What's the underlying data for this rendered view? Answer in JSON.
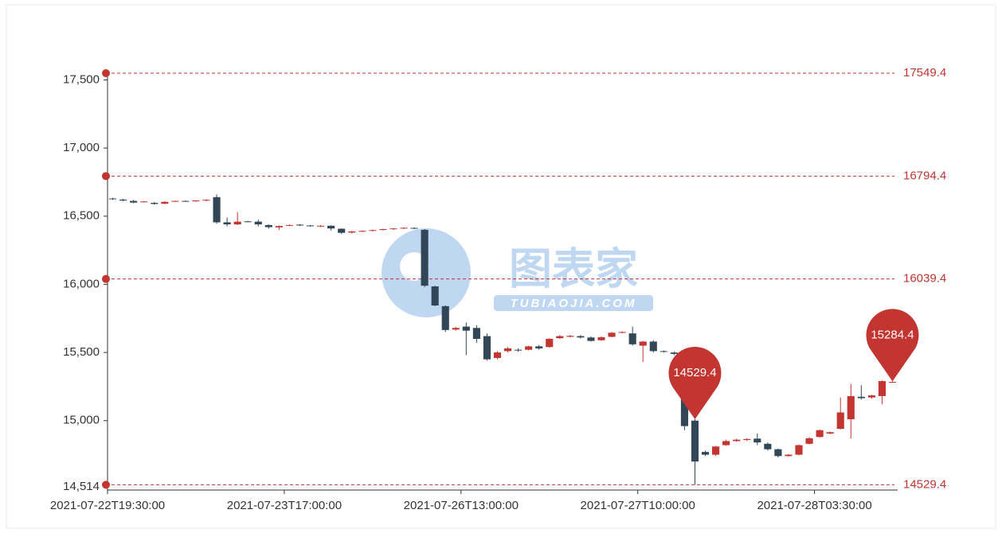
{
  "chart_data": {
    "type": "candlestick",
    "categories": [
      "2021-07-22T19:30:00",
      null,
      null,
      null,
      null,
      null,
      null,
      null,
      null,
      null,
      null,
      null,
      null,
      null,
      null,
      null,
      null,
      "2021-07-23T17:00:00",
      null,
      null,
      null,
      null,
      null,
      null,
      null,
      null,
      null,
      null,
      null,
      null,
      null,
      null,
      null,
      null,
      "2021-07-26T13:00:00",
      null,
      null,
      null,
      null,
      null,
      null,
      null,
      null,
      null,
      null,
      null,
      null,
      null,
      null,
      null,
      null,
      "2021-07-27T10:00:00",
      null,
      null,
      null,
      null,
      null,
      null,
      null,
      null,
      null,
      null,
      null,
      null,
      null,
      null,
      null,
      null,
      "2021-07-28T03:30:00",
      null,
      null,
      null,
      null,
      null,
      null,
      null
    ],
    "values": [
      [
        16630,
        16625,
        16620,
        16635
      ],
      [
        16622,
        16615,
        16610,
        16628
      ],
      [
        16612,
        16600,
        16595,
        16620
      ],
      [
        16605,
        16608,
        16600,
        16612
      ],
      [
        16598,
        16590,
        16585,
        16605
      ],
      [
        16592,
        16605,
        16588,
        16610
      ],
      [
        16608,
        16612,
        16605,
        16615
      ],
      [
        16612,
        16610,
        16606,
        16616
      ],
      [
        16610,
        16615,
        16606,
        16618
      ],
      [
        16615,
        16620,
        16610,
        16625
      ],
      [
        16640,
        16455,
        16445,
        16660
      ],
      [
        16455,
        16440,
        16425,
        16490
      ],
      [
        16440,
        16460,
        16435,
        16530
      ],
      [
        16462,
        16458,
        16455,
        16466
      ],
      [
        16460,
        16440,
        16425,
        16475
      ],
      [
        16435,
        16420,
        16408,
        16440
      ],
      [
        16418,
        16428,
        16400,
        16432
      ],
      [
        16432,
        16435,
        16428,
        16440
      ],
      [
        16438,
        16432,
        16428,
        16442
      ],
      [
        16432,
        16428,
        16424,
        16436
      ],
      [
        16425,
        16430,
        16420,
        16434
      ],
      [
        16430,
        16410,
        16395,
        16432
      ],
      [
        16408,
        16378,
        16370,
        16410
      ],
      [
        16380,
        16388,
        16372,
        16392
      ],
      [
        16388,
        16392,
        16384,
        16396
      ],
      [
        16392,
        16398,
        16388,
        16402
      ],
      [
        16400,
        16405,
        16395,
        16408
      ],
      [
        16405,
        16410,
        16400,
        16414
      ],
      [
        16410,
        16415,
        16406,
        16418
      ],
      [
        16414,
        16410,
        16405,
        16418
      ],
      [
        16400,
        15990,
        15980,
        16405
      ],
      [
        15985,
        15845,
        15840,
        15990
      ],
      [
        15840,
        15665,
        15650,
        15845
      ],
      [
        15668,
        15680,
        15660,
        15688
      ],
      [
        15690,
        15660,
        15480,
        15720
      ],
      [
        15680,
        15600,
        15570,
        15700
      ],
      [
        15620,
        15450,
        15440,
        15640
      ],
      [
        15460,
        15500,
        15450,
        15510
      ],
      [
        15510,
        15530,
        15500,
        15540
      ],
      [
        15520,
        15515,
        15505,
        15530
      ],
      [
        15520,
        15545,
        15515,
        15550
      ],
      [
        15545,
        15530,
        15520,
        15555
      ],
      [
        15540,
        15600,
        15535,
        15605
      ],
      [
        15605,
        15620,
        15600,
        15628
      ],
      [
        15615,
        15622,
        15610,
        15630
      ],
      [
        15620,
        15610,
        15602,
        15628
      ],
      [
        15610,
        15585,
        15580,
        15618
      ],
      [
        15590,
        15612,
        15585,
        15618
      ],
      [
        15615,
        15645,
        15610,
        15650
      ],
      [
        15645,
        15650,
        15640,
        15655
      ],
      [
        15640,
        15560,
        15550,
        15690
      ],
      [
        15550,
        15580,
        15430,
        15585
      ],
      [
        15580,
        15510,
        15500,
        15590
      ],
      [
        15510,
        15505,
        15500,
        15515
      ],
      [
        15500,
        15490,
        15480,
        15505
      ],
      [
        15180,
        14960,
        14930,
        15200
      ],
      [
        15000,
        14700,
        14529.4,
        15010
      ],
      [
        14770,
        14750,
        14740,
        14780
      ],
      [
        14750,
        14810,
        14740,
        14815
      ],
      [
        14820,
        14850,
        14815,
        14860
      ],
      [
        14850,
        14860,
        14845,
        14868
      ],
      [
        14858,
        14865,
        14850,
        14870
      ],
      [
        14868,
        14840,
        14820,
        14905
      ],
      [
        14830,
        14790,
        14780,
        14840
      ],
      [
        14790,
        14740,
        14730,
        14795
      ],
      [
        14740,
        14750,
        14735,
        14755
      ],
      [
        14750,
        14820,
        14745,
        14825
      ],
      [
        14830,
        14870,
        14825,
        14880
      ],
      [
        14880,
        14930,
        14875,
        14935
      ],
      [
        14905,
        14915,
        14900,
        14920
      ],
      [
        14940,
        15060,
        14935,
        15170
      ],
      [
        15010,
        15180,
        14870,
        15270
      ],
      [
        15175,
        15165,
        15155,
        15260
      ],
      [
        15170,
        15185,
        15160,
        15190
      ],
      [
        15180,
        15290,
        15120,
        15295
      ],
      [
        15280,
        15284.4,
        15278,
        15288
      ]
    ],
    "up_color": "#c23531",
    "down_color": "#314656",
    "ylim": [
      14514,
      17549.4
    ],
    "yticks": [
      {
        "value": 14514,
        "label": "14,514"
      },
      {
        "value": 15000,
        "label": "15,000"
      },
      {
        "value": 15500,
        "label": "15,500"
      },
      {
        "value": 16000,
        "label": "16,000"
      },
      {
        "value": 16500,
        "label": "16,500"
      },
      {
        "value": 17000,
        "label": "17,000"
      },
      {
        "value": 17500,
        "label": "17,500"
      }
    ],
    "mark_lines": [
      17549.4,
      16794.4,
      16039.4,
      14529.4
    ],
    "mark_points": [
      14529.4,
      15284.4
    ],
    "mark_color": "#c23531",
    "watermark": "图表家",
    "watermark_sub": "TUBIAOJIA.COM"
  }
}
